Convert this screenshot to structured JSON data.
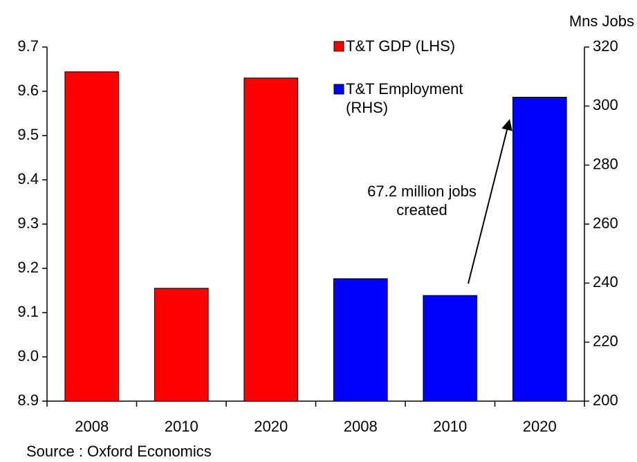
{
  "chart_data": {
    "type": "bar",
    "categories": [
      "2008",
      "2010",
      "2020",
      "2008",
      "2010",
      "2020"
    ],
    "series": [
      {
        "name": "T&T GDP (LHS)",
        "color": "#ff0000",
        "values": [
          9.644,
          9.155,
          9.63,
          null,
          null,
          null
        ]
      },
      {
        "name": "T&T Employment (RHS)",
        "color": "#0000ff",
        "axis": "y2",
        "values": [
          null,
          null,
          null,
          241.5,
          235.8,
          303.0
        ]
      }
    ],
    "ylim": [
      8.9,
      9.7
    ],
    "yticks": [
      8.9,
      {
        "value": 9,
        "label": "9.0"
      },
      9.1,
      9.2,
      9.3,
      9.4,
      9.5,
      9.6,
      9.7
    ],
    "y2lim": [
      200,
      320
    ],
    "y2ticks": [
      200,
      220,
      240,
      260,
      280,
      300,
      320
    ],
    "y2_label": "Mns Jobs",
    "annotation": "67.2 million jobs created",
    "source": "Source : Oxford Economics",
    "grid": false
  }
}
